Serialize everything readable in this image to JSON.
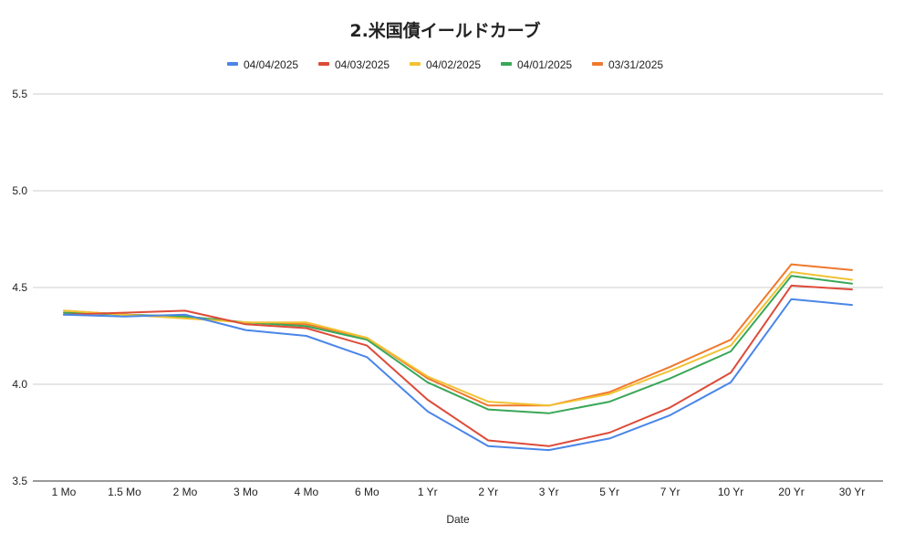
{
  "chart_data": {
    "type": "line",
    "title": "2.米国債イールドカーブ",
    "xlabel": "Date",
    "ylabel": "",
    "categories": [
      "1 Mo",
      "1.5 Mo",
      "2 Mo",
      "3 Mo",
      "4 Mo",
      "6 Mo",
      "1 Yr",
      "2 Yr",
      "3 Yr",
      "5 Yr",
      "7 Yr",
      "10 Yr",
      "20 Yr",
      "30 Yr"
    ],
    "ylim": [
      3.5,
      5.5
    ],
    "yticks": [
      {
        "value": 3.5,
        "label": "3.5"
      },
      {
        "value": 4.0,
        "label": "4.0"
      },
      {
        "value": 4.5,
        "label": "4.5"
      },
      {
        "value": 5.0,
        "label": "5.0"
      },
      {
        "value": 5.5,
        "label": "5.5"
      }
    ],
    "grid": true,
    "legend_position": "top",
    "series": [
      {
        "name": "04/04/2025",
        "color": "#4a86e8",
        "values": [
          4.36,
          4.35,
          4.36,
          4.28,
          4.25,
          4.14,
          3.86,
          3.68,
          3.66,
          3.72,
          3.84,
          4.01,
          4.44,
          4.41
        ]
      },
      {
        "name": "04/03/2025",
        "color": "#dd4b39",
        "values": [
          4.36,
          4.37,
          4.38,
          4.31,
          4.29,
          4.2,
          3.92,
          3.71,
          3.68,
          3.75,
          3.88,
          4.06,
          4.51,
          4.49
        ]
      },
      {
        "name": "04/02/2025",
        "color": "#f1c232",
        "values": [
          4.38,
          4.36,
          4.34,
          4.32,
          4.32,
          4.24,
          4.04,
          3.91,
          3.89,
          3.95,
          4.07,
          4.2,
          4.58,
          4.54
        ]
      },
      {
        "name": "04/01/2025",
        "color": "#3aa757",
        "values": [
          4.37,
          4.36,
          4.35,
          4.32,
          4.3,
          4.23,
          4.01,
          3.87,
          3.85,
          3.91,
          4.03,
          4.17,
          4.56,
          4.52
        ]
      },
      {
        "name": "03/31/2025",
        "color": "#f0782c",
        "values": [
          4.38,
          4.36,
          4.35,
          4.32,
          4.31,
          4.24,
          4.03,
          3.89,
          3.89,
          3.96,
          4.09,
          4.23,
          4.62,
          4.59
        ]
      }
    ]
  }
}
